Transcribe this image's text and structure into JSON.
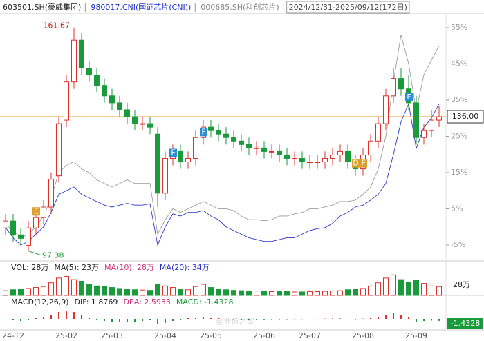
{
  "chart_data": [
    {
      "type": "candlestick",
      "header": [
        {
          "text": "603501.SH(豪威集团)",
          "color": "#222222"
        },
        {
          "text": "980017.CNI(国证芯片(CNI))",
          "color": "#2233cc"
        },
        {
          "text": "000685.SH(科创芯片)",
          "color": "#888888"
        },
        {
          "text": "2024/12/31-2025/09/12(172日)",
          "color": "#444444"
        }
      ],
      "categories": [
        null,
        "24-12",
        null,
        null,
        null,
        null,
        null,
        null,
        "25-02",
        null,
        null,
        null,
        null,
        null,
        "25-03",
        null,
        null,
        null,
        null,
        null,
        null,
        "25-04",
        null,
        null,
        null,
        null,
        null,
        "25-05",
        null,
        null,
        null,
        null,
        null,
        null,
        "25-06",
        null,
        null,
        null,
        null,
        null,
        "25-07",
        null,
        null,
        null,
        null,
        null,
        null,
        "25-08",
        null,
        null,
        null,
        null,
        null,
        null,
        "25-09",
        null,
        null,
        null
      ],
      "open": [
        104,
        106,
        102,
        99,
        104,
        107,
        110,
        119,
        135,
        146,
        158,
        150,
        148,
        145,
        142,
        140,
        138,
        136,
        134,
        134,
        131,
        114,
        124,
        126,
        123,
        124,
        130,
        133,
        132,
        131,
        130,
        129,
        128,
        127,
        127,
        126,
        126,
        125,
        124,
        124,
        123,
        123,
        123,
        124,
        125,
        126,
        123,
        121,
        125,
        129,
        134,
        142,
        147,
        144,
        140,
        130,
        132,
        135
      ],
      "high": [
        108,
        108,
        104,
        106,
        109,
        112,
        120,
        136,
        148,
        161.67,
        160,
        152,
        150,
        147,
        144,
        142,
        140,
        138,
        136,
        136,
        133,
        126,
        128,
        128,
        126,
        132,
        135,
        135,
        134,
        133,
        132,
        131,
        130,
        129,
        129,
        128,
        128,
        127,
        126,
        126,
        125,
        125,
        126,
        127,
        128,
        128,
        125,
        127,
        131,
        136,
        144,
        150,
        150,
        148,
        142,
        134,
        138,
        139
      ],
      "low": [
        102,
        100,
        99,
        97.38,
        102,
        105,
        108,
        117,
        133,
        144,
        148,
        146,
        143,
        140,
        138,
        136,
        134,
        132,
        132,
        131,
        110,
        112,
        122,
        121,
        121,
        122,
        128,
        130,
        129,
        128,
        127,
        126,
        125,
        125,
        124,
        124,
        123,
        122,
        122,
        121,
        121,
        121,
        121,
        122,
        123,
        121,
        119,
        119,
        123,
        127,
        132,
        140,
        142,
        138,
        128,
        128,
        130,
        133
      ],
      "close": [
        106,
        102,
        101,
        104,
        107,
        110,
        118,
        134,
        146,
        158,
        150,
        148,
        145,
        142,
        140,
        138,
        136,
        134,
        134,
        133,
        114,
        124,
        126,
        123,
        124,
        130,
        133,
        132,
        131,
        130,
        129,
        128,
        127,
        127,
        126,
        126,
        125,
        124,
        124,
        123,
        123,
        123,
        124,
        125,
        126,
        123,
        121,
        125,
        129,
        134,
        142,
        147,
        144,
        140,
        130,
        132,
        135,
        136
      ],
      "up_color": "#e0302a",
      "down_color": "#1a9a3a",
      "last_label": "136.00",
      "last_line_color": "#e0a030",
      "series": [
        {
          "name": "000685.SH(科创芯片)",
          "color": "#9a9a9a",
          "axis": "y2",
          "values": [
            0.7,
            -1,
            -3,
            -2,
            0,
            3,
            8,
            15,
            17,
            18,
            16,
            15,
            13,
            12,
            11,
            12,
            13,
            12,
            12,
            12,
            -2,
            2,
            5,
            4,
            5,
            6,
            7,
            6,
            5,
            5,
            4.5,
            3,
            2,
            2,
            1.7,
            2,
            3,
            3,
            3.6,
            4,
            5,
            5,
            5.5,
            6,
            7,
            7,
            7.4,
            9,
            11,
            16,
            25,
            40,
            53,
            45,
            32,
            42,
            46,
            50
          ]
        },
        {
          "name": "980017.CNI(国证芯片(CNI))",
          "color": "#2b35c8",
          "axis": "y2",
          "values": [
            -0.2,
            -3,
            -5,
            -4,
            -2,
            0,
            4,
            9,
            10,
            11,
            9,
            8,
            7,
            6,
            5.5,
            6,
            6.5,
            6,
            6,
            6.4,
            -5,
            0,
            3.6,
            3,
            4,
            4,
            4.5,
            3,
            2,
            0,
            -1,
            -2,
            -3,
            -3.5,
            -4,
            -4,
            -3.5,
            -3,
            -3,
            -2,
            -1,
            -0.5,
            -0.2,
            1,
            3,
            4,
            5.5,
            6,
            7.4,
            9,
            12,
            20,
            29,
            34,
            21.7,
            27.5,
            30,
            34
          ]
        }
      ],
      "ylim": [
        96.1,
        163.6
      ],
      "y2lim": [
        -7.86,
        56.9
      ],
      "y2ticks": [
        {
          "value": 55,
          "label": "55%"
        },
        {
          "value": 45,
          "label": "45%"
        },
        {
          "value": 35,
          "label": "35%"
        },
        {
          "value": 25,
          "label": "25%"
        },
        {
          "value": 15,
          "label": "15%"
        },
        {
          "value": 5,
          "label": "5%"
        },
        {
          "value": -5,
          "label": "-5%"
        }
      ],
      "markers": [
        {
          "label": "E",
          "x": 4,
          "color": "#d9a030"
        },
        {
          "label": "F",
          "x": 22,
          "color": "#2a8fd0"
        },
        {
          "label": "F",
          "x": 26,
          "color": "#2a8fd0"
        },
        {
          "label": "D",
          "x": 46,
          "color": "#d9a030"
        },
        {
          "label": "F",
          "x": 47,
          "color": "#d9a030"
        },
        {
          "label": "F",
          "x": 53,
          "color": "#2a8fd0"
        }
      ],
      "watermark": "@韭值之家"
    },
    {
      "type": "volume",
      "legend": [
        {
          "text": "VOL: 28万",
          "color": "#222222"
        },
        {
          "text": "MA(5): 23万",
          "color": "#222222"
        },
        {
          "text": "MA(10): 28万",
          "color": "#d0307a"
        },
        {
          "text": "MA(20): 34万",
          "color": "#2b35c8"
        }
      ],
      "values": [
        15,
        18,
        20,
        22,
        25,
        28,
        40,
        55,
        60,
        50,
        45,
        35,
        30,
        28,
        25,
        22,
        20,
        18,
        17,
        16,
        35,
        30,
        25,
        20,
        18,
        28,
        35,
        25,
        20,
        18,
        16,
        15,
        14,
        14,
        13,
        12,
        12,
        12,
        11,
        11,
        12,
        12,
        13,
        14,
        15,
        18,
        20,
        22,
        30,
        40,
        55,
        65,
        50,
        42,
        48,
        38,
        30,
        28
      ],
      "ylim": [
        0,
        70
      ],
      "last_label": "28万"
    },
    {
      "type": "macd",
      "legend": [
        {
          "text": "MACD(12,26,9)",
          "color": "#222222"
        },
        {
          "text": "DIF: 1.8769",
          "color": "#222222"
        },
        {
          "text": "DEA: 2.5933",
          "color": "#d0307a"
        },
        {
          "text": "MACD: -1.4328",
          "color": "#1a9a3a"
        }
      ],
      "values": [
        0,
        -1,
        -1.5,
        -1,
        0.5,
        1.5,
        3,
        5,
        6,
        5,
        3,
        1,
        -0.5,
        -1.5,
        -2,
        -2.5,
        -2.5,
        -2,
        -1.5,
        -1,
        -4,
        -3,
        -1.5,
        -0.5,
        0.5,
        1,
        1.5,
        1,
        0.5,
        0,
        -0.3,
        -0.5,
        -0.6,
        -0.5,
        -0.4,
        -0.3,
        -0.3,
        -0.2,
        -0.2,
        -0.1,
        0,
        0.1,
        0.2,
        0.3,
        0.3,
        0,
        -0.3,
        0.2,
        0.8,
        1.5,
        3,
        4.5,
        3,
        1.5,
        -2,
        -1.5,
        -1.2,
        -1.4328
      ],
      "ylim": [
        -8,
        8
      ]
    }
  ]
}
